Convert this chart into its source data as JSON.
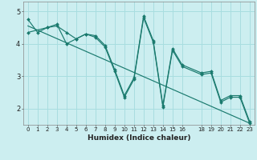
{
  "title": "",
  "xlabel": "Humidex (Indice chaleur)",
  "bg_color": "#cceef0",
  "line_color": "#1a7a6e",
  "grid_color": "#a8dde0",
  "xlim": [
    -0.5,
    23.5
  ],
  "ylim": [
    1.5,
    5.3
  ],
  "yticks": [
    2,
    3,
    4,
    5
  ],
  "xticks": [
    0,
    1,
    2,
    3,
    4,
    5,
    6,
    7,
    8,
    9,
    10,
    11,
    12,
    13,
    14,
    15,
    16,
    18,
    19,
    20,
    21,
    22,
    23
  ],
  "series1_x": [
    0,
    1,
    2,
    3,
    4,
    5,
    6,
    7,
    8,
    9,
    10,
    11,
    12,
    13,
    14,
    15,
    16,
    18,
    19,
    20,
    21,
    22,
    23
  ],
  "series1_y": [
    4.75,
    4.35,
    4.5,
    4.6,
    4.0,
    4.15,
    4.3,
    4.25,
    3.95,
    3.2,
    2.4,
    2.95,
    4.85,
    4.1,
    2.1,
    3.85,
    3.35,
    3.1,
    3.15,
    2.25,
    2.4,
    2.4,
    1.6
  ],
  "series2_x": [
    0,
    2,
    3,
    4,
    5,
    6,
    7,
    8,
    9,
    10,
    11,
    12,
    13,
    14,
    15,
    16,
    18,
    19,
    20,
    21,
    22,
    23
  ],
  "series2_y": [
    4.35,
    4.5,
    4.55,
    4.35,
    4.15,
    4.3,
    4.2,
    3.9,
    3.15,
    2.35,
    2.9,
    4.8,
    4.05,
    2.05,
    3.8,
    3.3,
    3.05,
    3.1,
    2.2,
    2.35,
    2.35,
    1.55
  ],
  "trend_x": [
    0,
    23
  ],
  "trend_y": [
    4.55,
    1.55
  ]
}
